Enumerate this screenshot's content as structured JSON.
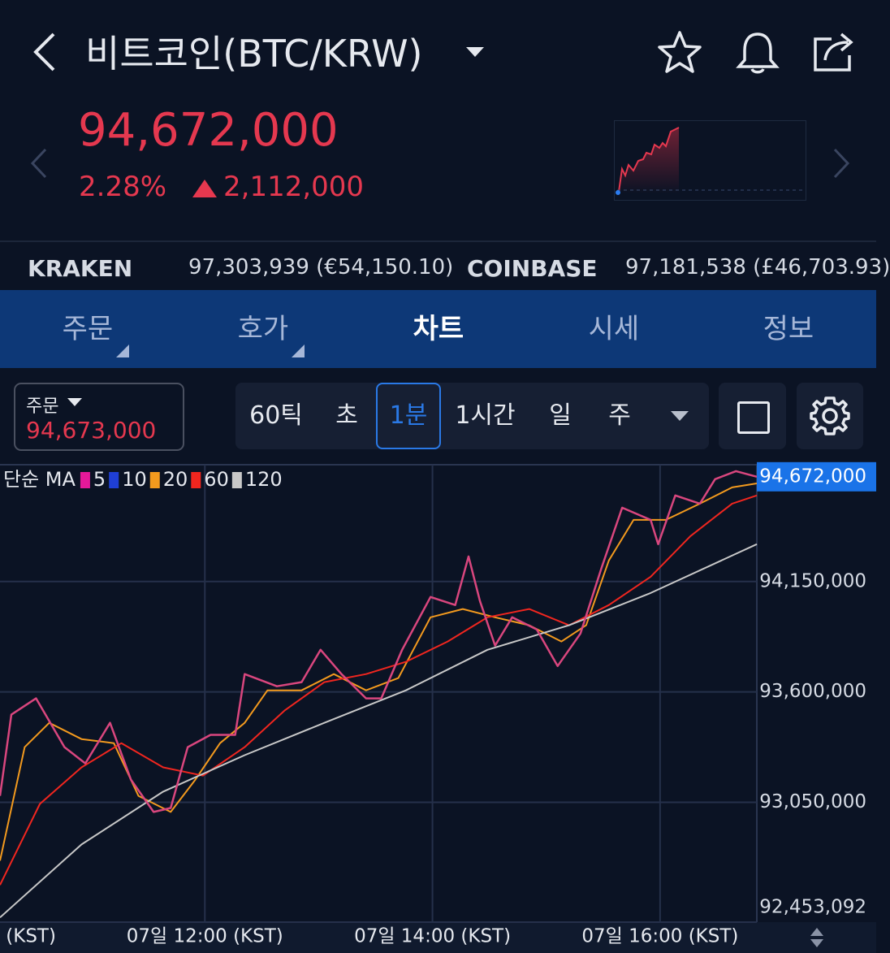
{
  "header": {
    "title": "비트코인(BTC/KRW)"
  },
  "price": {
    "current": "94,672,000",
    "change_rate": "2.28%",
    "change_amount": "2,112,000"
  },
  "exchanges": [
    {
      "name": "KRAKEN",
      "price": "97,303,939 (€54,150.10)"
    },
    {
      "name": "COINBASE",
      "price": "97,181,538 (£46,703.93)"
    }
  ],
  "tabs": [
    "주문",
    "호가",
    "차트",
    "시세",
    "정보"
  ],
  "order_box": {
    "label": "주문",
    "price": "94,673,000"
  },
  "intervals": [
    "60틱",
    "초",
    "1분",
    "1시간",
    "일",
    "주"
  ],
  "chart_data": {
    "type": "line",
    "legend_title": "단순 MA",
    "x": [
      -108,
      -102,
      -89,
      -74,
      -63,
      -50,
      -39,
      -27,
      -18,
      -9,
      3,
      16,
      21,
      38,
      51,
      61,
      72,
      85,
      93,
      104,
      119,
      132,
      139,
      145,
      153,
      162,
      175,
      186,
      198,
      209,
      220,
      235,
      239,
      248,
      261,
      269,
      280,
      291
    ],
    "values": [
      93082000,
      93487000,
      93568000,
      93325000,
      93244000,
      93446000,
      93163000,
      93002000,
      93022000,
      93325000,
      93386000,
      93386000,
      93689000,
      93628000,
      93649000,
      93810000,
      93689000,
      93568000,
      93568000,
      93810000,
      94073000,
      94033000,
      94275000,
      94053000,
      93831000,
      93972000,
      93911000,
      93729000,
      93891000,
      94215000,
      94518000,
      94457000,
      94336000,
      94579000,
      94538000,
      94660000,
      94700000,
      94672000
    ],
    "color": "#d9467e",
    "series": [
      {
        "name": "5",
        "color": "#e6199a"
      },
      {
        "name": "10",
        "color": "#1f3fd6"
      },
      {
        "name": "20",
        "color": "#f39a1e",
        "x": [
          -108,
          -95,
          -82,
          -65,
          -48,
          -35,
          -18,
          -5,
          8,
          21,
          33,
          51,
          68,
          85,
          102,
          119,
          136,
          153,
          171,
          188,
          201,
          213,
          226,
          243,
          261,
          278,
          291
        ],
        "values": [
          92759000,
          93325000,
          93446000,
          93365000,
          93345000,
          93082000,
          93002000,
          93163000,
          93345000,
          93446000,
          93608000,
          93608000,
          93689000,
          93608000,
          93669000,
          93972000,
          94013000,
          93972000,
          93932000,
          93851000,
          93932000,
          94255000,
          94457000,
          94457000,
          94538000,
          94619000,
          94639000
        ]
      },
      {
        "name": "60",
        "color": "#f0261f",
        "x": [
          -108,
          -87,
          -65,
          -44,
          -22,
          -1,
          21,
          42,
          63,
          85,
          106,
          128,
          149,
          171,
          192,
          213,
          235,
          256,
          278,
          291
        ],
        "values": [
          92638000,
          93042000,
          93224000,
          93345000,
          93224000,
          93183000,
          93325000,
          93507000,
          93649000,
          93689000,
          93750000,
          93851000,
          93972000,
          94013000,
          93932000,
          94033000,
          94174000,
          94376000,
          94538000,
          94579000
        ]
      },
      {
        "name": "120",
        "color": "#c8c8c8",
        "x": [
          -108,
          -65,
          -22,
          21,
          63,
          106,
          149,
          192,
          235,
          291
        ],
        "values": [
          92476000,
          92840000,
          93103000,
          93285000,
          93446000,
          93608000,
          93810000,
          93932000,
          94093000,
          94336000
        ]
      }
    ],
    "xlim": [
      -108,
      291
    ],
    "xticks": [
      {
        "value": -120,
        "label": "(KST)"
      },
      {
        "value": 0,
        "label": "07일 12:00 (KST)"
      },
      {
        "value": 120,
        "label": "07일 14:00 (KST)"
      },
      {
        "value": 240,
        "label": "07일 16:00 (KST)"
      }
    ],
    "ylim": [
      92453092,
      94732000
    ],
    "yticks": [
      {
        "value": 92453092,
        "label": "92,453,092"
      },
      {
        "value": 93050000,
        "label": "93,050,000"
      },
      {
        "value": 93600000,
        "label": "93,600,000"
      },
      {
        "value": 94150000,
        "label": "94,150,000"
      }
    ],
    "current_price": {
      "value": 94672000,
      "label": "94,672,000"
    },
    "grid": true
  }
}
